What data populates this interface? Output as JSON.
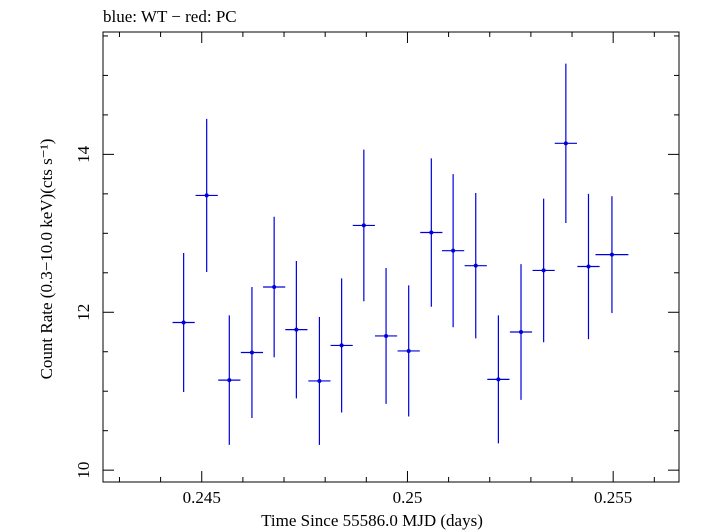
{
  "chart_data": {
    "type": "scatter",
    "title": "blue: WT − red: PC",
    "xlabel": "Time Since 55586.0 MJD (days)",
    "ylabel": "Count Rate (0.3−10.0 keV)(cts s⁻¹)",
    "xlim": [
      0.2426,
      0.2566
    ],
    "ylim": [
      9.85,
      15.55
    ],
    "x_ticks": [
      {
        "value": 0.245,
        "label": "0.245"
      },
      {
        "value": 0.25,
        "label": "0.25"
      },
      {
        "value": 0.255,
        "label": "0.255"
      }
    ],
    "y_ticks": [
      {
        "value": 10,
        "label": "10"
      },
      {
        "value": 12,
        "label": "12"
      },
      {
        "value": 14,
        "label": "14"
      }
    ],
    "grid": false,
    "series": [
      {
        "name": "WT",
        "color": "#0000dd",
        "points": [
          {
            "x": 0.24456,
            "xerr": 0.00027,
            "y": 11.87,
            "yerr": 0.88
          },
          {
            "x": 0.24512,
            "xerr": 0.00027,
            "y": 13.48,
            "yerr": 0.97
          },
          {
            "x": 0.24567,
            "xerr": 0.00027,
            "y": 11.14,
            "yerr": 0.82
          },
          {
            "x": 0.24622,
            "xerr": 0.00027,
            "y": 11.49,
            "yerr": 0.83
          },
          {
            "x": 0.24676,
            "xerr": 0.00027,
            "y": 12.32,
            "yerr": 0.89
          },
          {
            "x": 0.2473,
            "xerr": 0.00027,
            "y": 11.78,
            "yerr": 0.87
          },
          {
            "x": 0.24786,
            "xerr": 0.00027,
            "y": 11.13,
            "yerr": 0.81
          },
          {
            "x": 0.2484,
            "xerr": 0.00027,
            "y": 11.58,
            "yerr": 0.85
          },
          {
            "x": 0.24894,
            "xerr": 0.00027,
            "y": 13.1,
            "yerr": 0.96
          },
          {
            "x": 0.24948,
            "xerr": 0.00027,
            "y": 11.7,
            "yerr": 0.86
          },
          {
            "x": 0.25003,
            "xerr": 0.00027,
            "y": 11.51,
            "yerr": 0.83
          },
          {
            "x": 0.25058,
            "xerr": 0.00027,
            "y": 13.01,
            "yerr": 0.94
          },
          {
            "x": 0.25111,
            "xerr": 0.00027,
            "y": 12.78,
            "yerr": 0.97
          },
          {
            "x": 0.25166,
            "xerr": 0.00027,
            "y": 12.59,
            "yerr": 0.92
          },
          {
            "x": 0.25221,
            "xerr": 0.00027,
            "y": 11.15,
            "yerr": 0.81
          },
          {
            "x": 0.25276,
            "xerr": 0.00027,
            "y": 11.75,
            "yerr": 0.86
          },
          {
            "x": 0.25331,
            "xerr": 0.00027,
            "y": 12.53,
            "yerr": 0.91
          },
          {
            "x": 0.25385,
            "xerr": 0.00027,
            "y": 14.14,
            "yerr": 1.01
          },
          {
            "x": 0.2544,
            "xerr": 0.00027,
            "y": 12.58,
            "yerr": 0.92
          },
          {
            "x": 0.25497,
            "xerr": 0.0004,
            "y": 12.73,
            "yerr": 0.74
          }
        ]
      }
    ]
  }
}
